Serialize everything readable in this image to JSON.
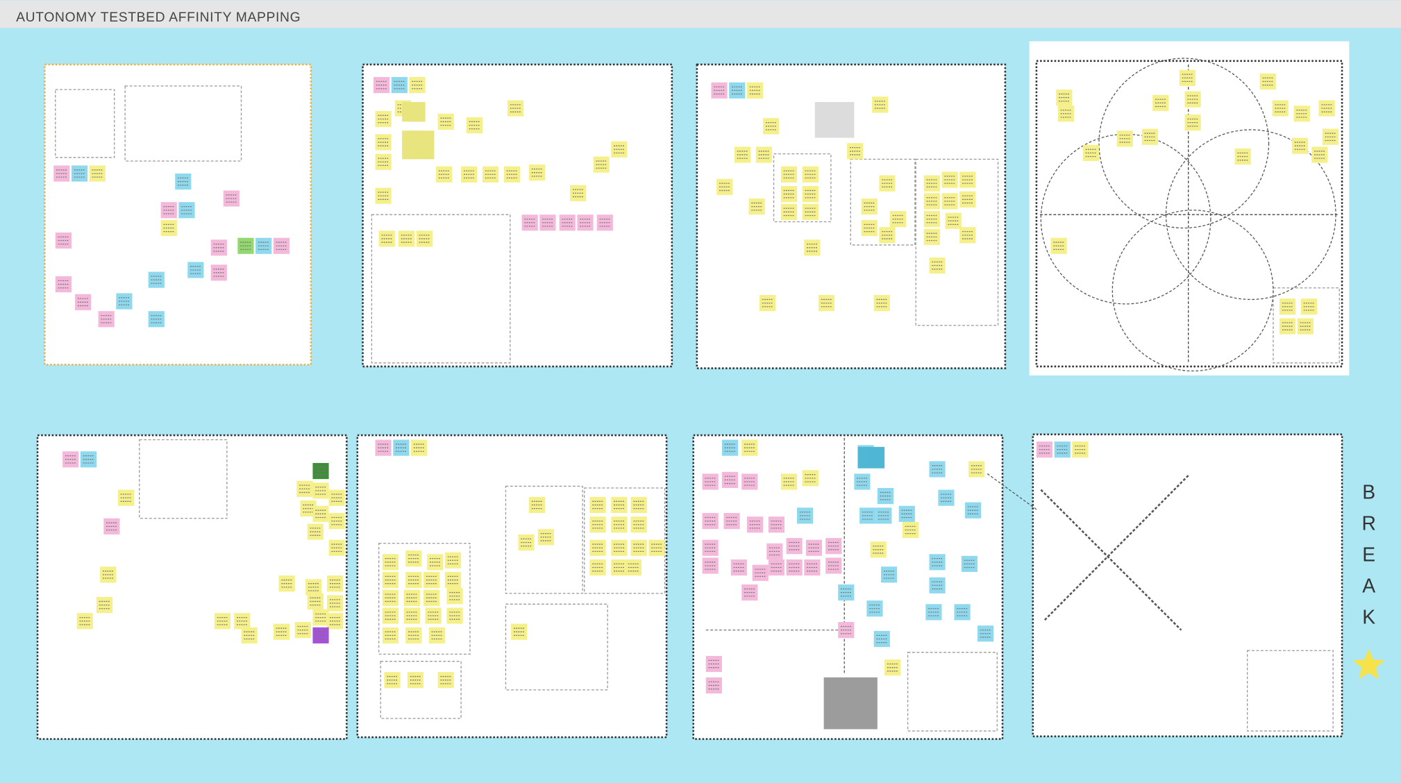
{
  "header": {
    "title": "AUTONOMY TESTBED AFFINITY MAPPING"
  },
  "break_label": {
    "letters": [
      "B",
      "R",
      "E",
      "A",
      "K"
    ]
  }
}
